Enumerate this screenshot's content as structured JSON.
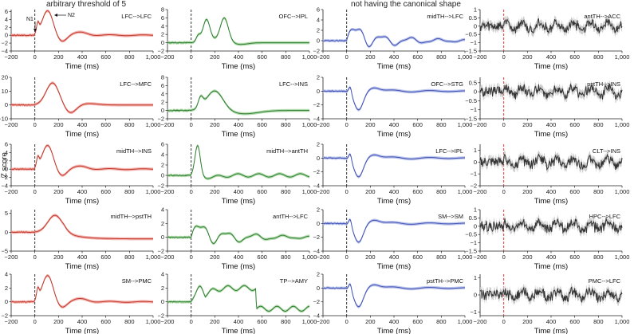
{
  "headers": {
    "col1": "arbitrary threshold of 5",
    "col3": "not having the canonical shape"
  },
  "y_axis_label": "Z score",
  "annotations": {
    "n1": "N1",
    "n2": "N2"
  },
  "colors": {
    "red": "#c0392b",
    "red_band": "#f2a7a3",
    "green": "#2e7d32",
    "green_band": "#a9d6a2",
    "blue": "#3f51b5",
    "blue_band": "#b3bde8",
    "gray": "#333333",
    "gray_band": "#c8c8c8",
    "onset_dash": "#333333",
    "onset_red": "#e53935"
  },
  "chart_data": {
    "type": "line",
    "x_label": "Time (ms)",
    "x_range": [
      -200,
      1000
    ],
    "x_ticks": [
      -200,
      0,
      200,
      400,
      600,
      800,
      1000
    ],
    "x_tick_labels": [
      "−200",
      "0",
      "200",
      "400",
      "600",
      "800",
      "1,000"
    ],
    "rows": [
      [
        {
          "label": "LFC-->LFC",
          "color": "red",
          "yticks": [
            -4,
            -2,
            0,
            2,
            4,
            6
          ],
          "ylim": [
            -4,
            6.5
          ],
          "profile": "n1n2"
        },
        {
          "label": "OFC-->IPL",
          "color": "green",
          "yticks": [
            -2,
            0,
            2,
            4,
            6,
            8
          ],
          "ylim": [
            -2,
            8
          ],
          "profile": "triple"
        },
        {
          "label": "midTH-->LFC",
          "color": "blue",
          "yticks": [
            -2,
            0,
            2,
            4,
            6
          ],
          "ylim": [
            -2,
            6
          ],
          "profile": "osc"
        },
        {
          "label": "antTH-->ACC",
          "color": "gray",
          "yticks": [
            -1.5,
            -1,
            -0.5,
            0,
            0.5,
            1
          ],
          "ylim": [
            -1.5,
            1
          ],
          "profile": "noise",
          "onset": "red"
        }
      ],
      [
        {
          "label": "LFC-->MFC",
          "color": "red",
          "yticks": [
            -10,
            0,
            10,
            20
          ],
          "ylim": [
            -10,
            20
          ],
          "profile": "big"
        },
        {
          "label": "LFC-->INS",
          "color": "green",
          "yticks": [
            -2,
            0,
            2,
            4,
            6,
            8
          ],
          "ylim": [
            -2,
            8
          ],
          "profile": "slow"
        },
        {
          "label": "OFC-->STG",
          "color": "blue",
          "yticks": [
            -4,
            -2,
            0,
            2
          ],
          "ylim": [
            -4,
            2
          ],
          "profile": "dip"
        },
        {
          "label": "pstTH-->INS",
          "color": "gray",
          "yticks": [
            -1.5,
            -1,
            -0.5,
            0,
            0.5
          ],
          "ylim": [
            -1.5,
            0.8
          ],
          "profile": "noise",
          "onset": "red"
        }
      ],
      [
        {
          "label": "midTH-->INS",
          "color": "red",
          "yticks": [
            -4,
            -2,
            0,
            2,
            4,
            6
          ],
          "ylim": [
            -4,
            6
          ],
          "profile": "n1n2"
        },
        {
          "label": "midTH-->antTH",
          "color": "green",
          "yticks": [
            -2,
            0,
            2,
            4,
            6
          ],
          "ylim": [
            -2,
            6
          ],
          "profile": "sharp"
        },
        {
          "label": "LFC-->IPL",
          "color": "blue",
          "yticks": [
            -4,
            -2,
            0,
            2
          ],
          "ylim": [
            -4,
            2
          ],
          "profile": "dip"
        },
        {
          "label": "CLT-->INS",
          "color": "gray",
          "yticks": [
            -2,
            -1,
            0,
            1
          ],
          "ylim": [
            -2,
            1.5
          ],
          "profile": "noise",
          "onset": "red"
        }
      ],
      [
        {
          "label": "midTH-->pstTH",
          "color": "red",
          "yticks": [
            -5,
            0,
            5
          ],
          "ylim": [
            -5,
            6
          ],
          "profile": "hump"
        },
        {
          "label": "antTH-->LFC",
          "color": "green",
          "yticks": [
            -2,
            0,
            2,
            4
          ],
          "ylim": [
            -2,
            4
          ],
          "profile": "osc"
        },
        {
          "label": "SM-->SM",
          "color": "blue",
          "yticks": [
            -4,
            -2,
            0,
            2
          ],
          "ylim": [
            -4,
            2
          ],
          "profile": "dip"
        },
        {
          "label": "HPC-->LFC",
          "color": "gray",
          "yticks": [
            -1.5,
            -1,
            -0.5,
            0,
            0.5,
            1
          ],
          "ylim": [
            -1.5,
            1
          ],
          "profile": "noise",
          "onset": "red"
        }
      ],
      [
        {
          "label": "SM-->PMC",
          "color": "red",
          "yticks": [
            -2,
            0,
            2,
            4
          ],
          "ylim": [
            -2,
            4
          ],
          "profile": "n1n2"
        },
        {
          "label": "TP-->AMY",
          "color": "green",
          "yticks": [
            -2,
            0,
            2,
            4
          ],
          "ylim": [
            -2,
            4
          ],
          "profile": "plateau"
        },
        {
          "label": "pstTH-->PMC",
          "color": "blue",
          "yticks": [
            -4,
            -2,
            0,
            2
          ],
          "ylim": [
            -4,
            2
          ],
          "profile": "dip"
        },
        {
          "label": "PMC-->LFC",
          "color": "gray",
          "yticks": [
            -1,
            0,
            1
          ],
          "ylim": [
            -1.2,
            1.2
          ],
          "profile": "noise",
          "onset": "red"
        }
      ]
    ]
  }
}
